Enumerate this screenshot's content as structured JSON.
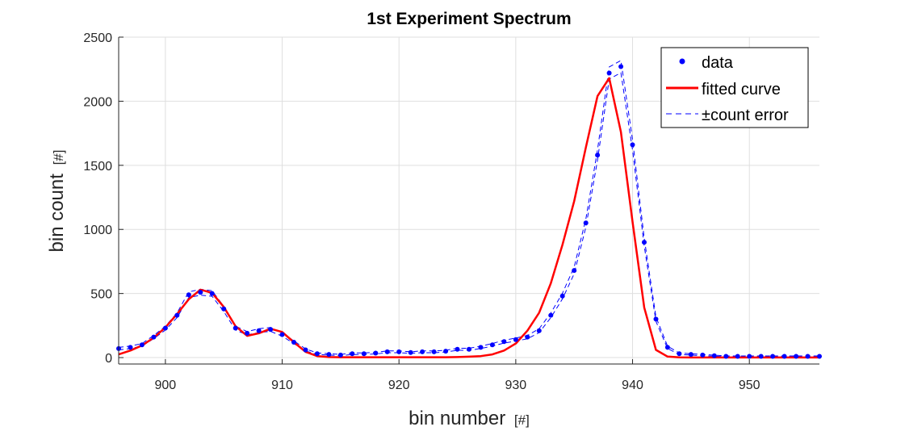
{
  "chart_data": {
    "type": "line",
    "title": "1st Experiment Spectrum",
    "xlabel": "bin number",
    "xlabel_unit": "[#]",
    "ylabel": "bin count",
    "ylabel_unit": "[#]",
    "xlim": [
      896,
      956
    ],
    "ylim": [
      -50,
      2500
    ],
    "xticks": [
      900,
      910,
      920,
      930,
      940,
      950
    ],
    "yticks": [
      0,
      500,
      1000,
      1500,
      2000,
      2500
    ],
    "grid": true,
    "legend_position": "top-right",
    "x": [
      896,
      897,
      898,
      899,
      900,
      901,
      902,
      903,
      904,
      905,
      906,
      907,
      908,
      909,
      910,
      911,
      912,
      913,
      914,
      915,
      916,
      917,
      918,
      919,
      920,
      921,
      922,
      923,
      924,
      925,
      926,
      927,
      928,
      929,
      930,
      931,
      932,
      933,
      934,
      935,
      936,
      937,
      938,
      939,
      940,
      941,
      942,
      943,
      944,
      945,
      946,
      947,
      948,
      949,
      950,
      951,
      952,
      953,
      954,
      955,
      956
    ],
    "series": [
      {
        "name": "data",
        "style": "markers",
        "color": "#0000ff",
        "values": [
          70,
          80,
          100,
          160,
          230,
          330,
          490,
          510,
          500,
          380,
          230,
          190,
          210,
          220,
          180,
          120,
          60,
          30,
          25,
          20,
          30,
          30,
          35,
          45,
          45,
          40,
          45,
          45,
          50,
          65,
          65,
          80,
          100,
          125,
          140,
          160,
          210,
          330,
          480,
          680,
          1050,
          1580,
          2220,
          2270,
          1660,
          900,
          300,
          80,
          30,
          25,
          20,
          15,
          10,
          10,
          10,
          10,
          10,
          10,
          10,
          10,
          10
        ]
      },
      {
        "name": "fitted curve",
        "style": "line",
        "color": "#ff0000",
        "values": [
          25,
          55,
          95,
          155,
          235,
          340,
          455,
          530,
          505,
          395,
          245,
          170,
          190,
          225,
          200,
          120,
          45,
          12,
          4,
          3,
          3,
          3,
          3,
          3,
          3,
          3,
          3,
          3,
          3,
          4,
          7,
          12,
          25,
          55,
          110,
          210,
          350,
          580,
          880,
          1220,
          1640,
          2040,
          2180,
          1760,
          1060,
          390,
          60,
          8,
          2,
          1,
          1,
          1,
          1,
          1,
          1,
          1,
          1,
          1,
          1,
          1,
          1
        ]
      },
      {
        "name": "±count error",
        "style": "dashed",
        "color": "#0000ff",
        "upper": [
          80,
          90,
          110,
          172,
          245,
          348,
          512,
          533,
          522,
          400,
          245,
          203,
          225,
          235,
          193,
          131,
          68,
          36,
          30,
          25,
          36,
          36,
          41,
          52,
          52,
          46,
          52,
          52,
          57,
          73,
          73,
          89,
          110,
          136,
          152,
          173,
          225,
          348,
          502,
          706,
          1082,
          1620,
          2267,
          2318,
          1701,
          930,
          317,
          89,
          36,
          30,
          25,
          19,
          13,
          13,
          13,
          13,
          13,
          13,
          13,
          13,
          13
        ],
        "lower": [
          60,
          70,
          90,
          148,
          215,
          312,
          468,
          487,
          478,
          360,
          215,
          177,
          195,
          205,
          167,
          109,
          52,
          24,
          20,
          15,
          24,
          24,
          29,
          38,
          38,
          34,
          38,
          38,
          43,
          57,
          57,
          71,
          90,
          114,
          128,
          147,
          195,
          312,
          458,
          654,
          1018,
          1540,
          2173,
          2222,
          1619,
          870,
          283,
          71,
          24,
          20,
          15,
          11,
          7,
          7,
          7,
          7,
          7,
          7,
          7,
          7,
          7
        ]
      }
    ]
  }
}
